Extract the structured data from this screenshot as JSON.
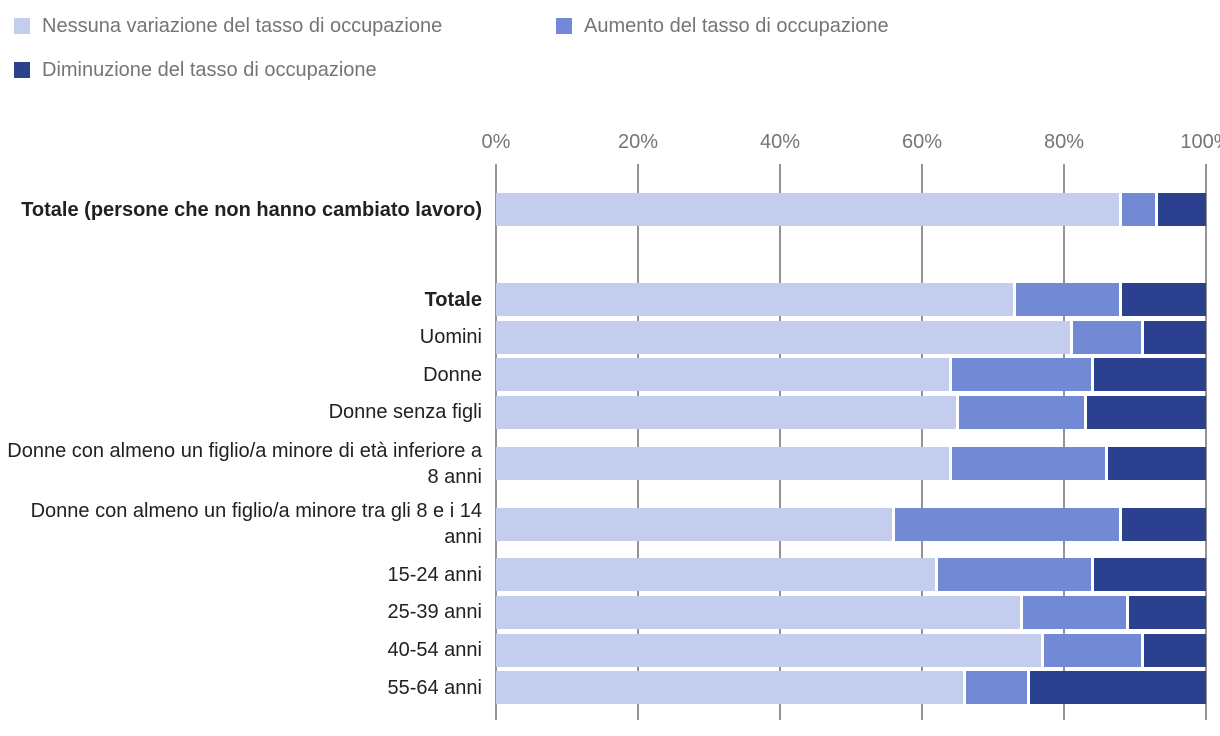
{
  "legend": {
    "items": [
      {
        "label": "Nessuna variazione del tasso di occupazione",
        "color": "#c4cdee"
      },
      {
        "label": "Aumento del tasso di occupazione",
        "color": "#7289d6"
      },
      {
        "label": "Diminuzione del tasso di occupazione",
        "color": "#2b4190"
      }
    ]
  },
  "axis": {
    "tick_labels": [
      "0%",
      "20%",
      "40%",
      "60%",
      "80%",
      "100%"
    ],
    "tick_values": [
      0,
      20,
      40,
      60,
      80,
      100
    ]
  },
  "chart_data": {
    "type": "bar",
    "orientation": "horizontal",
    "stacked": true,
    "stack_total": 100,
    "xlim": [
      0,
      100
    ],
    "grid": true,
    "legend_position": "top",
    "categories": [
      "Totale (persone che non hanno cambiato lavoro)",
      "Totale",
      "Uomini",
      "Donne",
      "Donne senza figli",
      "Donne con almeno un figlio/a minore di età inferiore a 8 anni",
      "Donne con almeno un figlio/a minore tra gli 8 e i 14 anni",
      "15-24 anni",
      "25-39 anni",
      "40-54 anni",
      "55-64 anni"
    ],
    "bold_categories": [
      0,
      1
    ],
    "series": [
      {
        "name": "Nessuna variazione del tasso di occupazione",
        "color": "#c4cdee",
        "values": [
          88,
          73,
          81,
          64,
          65,
          64,
          56,
          62,
          74,
          77,
          66
        ]
      },
      {
        "name": "Aumento del tasso di occupazione",
        "color": "#7289d6",
        "values": [
          5,
          15,
          10,
          20,
          18,
          22,
          32,
          22,
          15,
          14,
          9
        ]
      },
      {
        "name": "Diminuzione del tasso di occupazione",
        "color": "#2b4190",
        "values": [
          7,
          12,
          9,
          16,
          17,
          14,
          12,
          16,
          11,
          9,
          25
        ]
      }
    ]
  }
}
